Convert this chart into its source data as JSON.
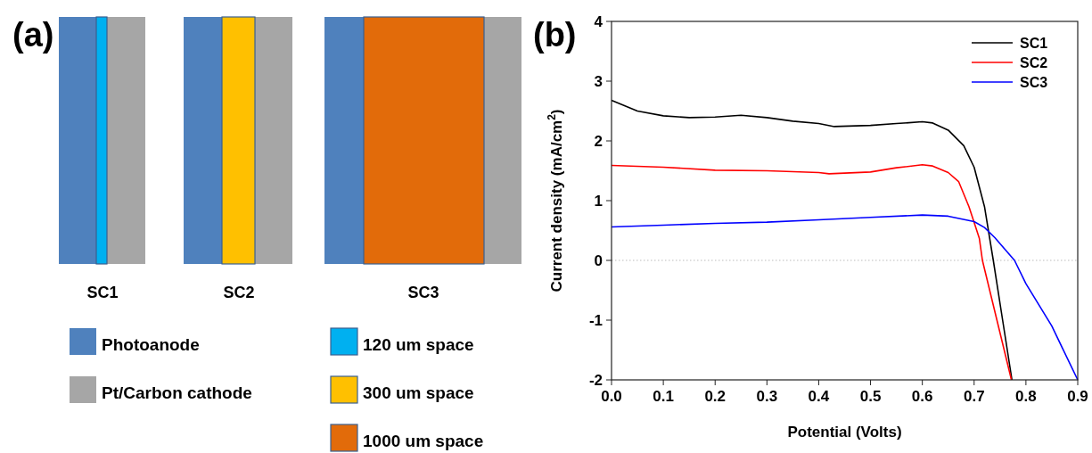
{
  "chart_data": [
    {
      "type": "other",
      "title": "(a)",
      "annotations": [
        "SC1",
        "SC2",
        "SC3",
        "Photoanode",
        "Pt/Carbon cathode",
        "120 um space",
        "300 um space",
        "1000 um space"
      ]
    },
    {
      "type": "line",
      "title": "(b)",
      "xlabel": "Potential (Volts)",
      "ylabel": "Current density (mA/cm$^{2}$)",
      "xlim": [
        0,
        0.9
      ],
      "xticks": [
        {
          "value": 0,
          "label": "0.0"
        },
        0.1,
        0.2,
        0.3,
        0.4,
        0.5,
        0.6,
        0.7,
        0.8,
        0.9
      ],
      "ylim": [
        -2,
        4
      ],
      "yticks": [
        -2,
        -1,
        0,
        1,
        2,
        3,
        4
      ],
      "grid": false,
      "legend": "top right",
      "marker": "none",
      "line_style": "solid",
      "ref_lines": [
        {
          "axis": "y",
          "value": 0,
          "color": "#bbbbbb",
          "line_style": "dotted"
        }
      ],
      "series": [
        {
          "name": "SC1",
          "color": "#000000",
          "x": [
            0,
            0.05,
            0.1,
            0.15,
            0.2,
            0.25,
            0.3,
            0.35,
            0.4,
            0.43,
            0.5,
            0.55,
            0.6,
            0.62,
            0.65,
            0.68,
            0.7,
            0.72,
            0.737,
            0.755,
            0.773
          ],
          "values": [
            2.68,
            2.5,
            2.42,
            2.39,
            2.4,
            2.43,
            2.39,
            2.33,
            2.29,
            2.24,
            2.26,
            2.29,
            2.32,
            2.3,
            2.18,
            1.92,
            1.56,
            0.9,
            0,
            -1,
            -2
          ]
        },
        {
          "name": "SC2",
          "color": "#ff0000",
          "x": [
            0,
            0.1,
            0.2,
            0.3,
            0.4,
            0.42,
            0.5,
            0.55,
            0.6,
            0.62,
            0.65,
            0.67,
            0.69,
            0.71,
            0.716,
            0.744,
            0.772
          ],
          "values": [
            1.59,
            1.56,
            1.51,
            1.5,
            1.47,
            1.45,
            1.48,
            1.55,
            1.6,
            1.58,
            1.47,
            1.32,
            0.9,
            0.37,
            0,
            -1,
            -2
          ]
        },
        {
          "name": "SC3",
          "color": "#0000ff",
          "x": [
            0,
            0.1,
            0.2,
            0.3,
            0.4,
            0.5,
            0.6,
            0.65,
            0.7,
            0.72,
            0.74,
            0.75,
            0.778,
            0.8,
            0.85,
            0.87,
            0.9
          ],
          "values": [
            0.56,
            0.59,
            0.62,
            0.64,
            0.68,
            0.72,
            0.76,
            0.74,
            0.65,
            0.55,
            0.38,
            0.28,
            0,
            -0.39,
            -1.1,
            -1.46,
            -2
          ]
        }
      ]
    }
  ]
}
